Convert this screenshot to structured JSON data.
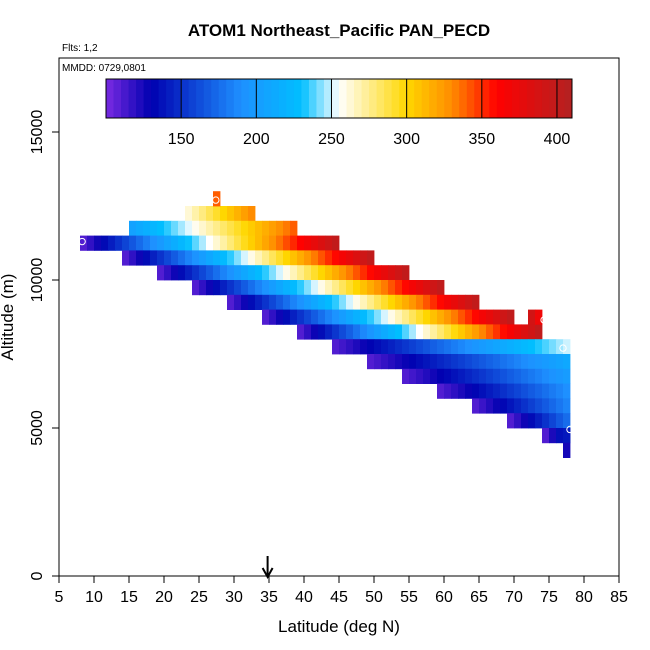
{
  "chart_data": {
    "type": "heatmap",
    "title": "ATOM1 Northeast_Pacific PAN_PECD",
    "flights_note": "Flts: 1,2",
    "date_note": "MMDD: 0729,0801",
    "xlabel": "Latitude (deg N)",
    "ylabel": "Altitude (m)",
    "xlim": [
      5,
      85
    ],
    "ylim": [
      0,
      17500
    ],
    "x_ticks": [
      5,
      10,
      15,
      20,
      25,
      30,
      35,
      40,
      45,
      50,
      55,
      60,
      65,
      70,
      75,
      80,
      85
    ],
    "y_ticks": [
      0,
      5000,
      10000,
      15000
    ],
    "colorbar": {
      "min": 100,
      "max": 410,
      "ticks": [
        150,
        200,
        250,
        300,
        350,
        400
      ],
      "colors": [
        "#7a2be2",
        "#0000b0",
        "#1e90ff",
        "#00bfff",
        "#ffffff",
        "#ffd700",
        "#ff8c00",
        "#ff0000",
        "#b22222"
      ],
      "stops": [
        100,
        130,
        190,
        230,
        255,
        300,
        330,
        360,
        410
      ]
    },
    "arrow_latitude": 34.8,
    "cell_width_deg": 1,
    "cell_height_m": 500,
    "bands": [
      {
        "alt": 12000,
        "lat_start": 22,
        "lat_end": 32,
        "v_start": 255,
        "v_end": 330
      },
      {
        "alt": 11500,
        "lat_start": 15,
        "lat_end": 38,
        "v_start": 205,
        "v_end": 340
      },
      {
        "alt": 11000,
        "lat_start": 8,
        "lat_end": 44,
        "v_start": 110,
        "v_end": 400
      },
      {
        "alt": 10500,
        "lat_start": 14,
        "lat_end": 49,
        "v_start": 110,
        "v_end": 400
      },
      {
        "alt": 10000,
        "lat_start": 19,
        "lat_end": 54,
        "v_start": 110,
        "v_end": 400
      },
      {
        "alt": 9500,
        "lat_start": 24,
        "lat_end": 59,
        "v_start": 110,
        "v_end": 400
      },
      {
        "alt": 9000,
        "lat_start": 29,
        "lat_end": 64,
        "v_start": 110,
        "v_end": 400
      },
      {
        "alt": 8500,
        "lat_start": 34,
        "lat_end": 69,
        "v_start": 110,
        "v_end": 400
      },
      {
        "alt": 8000,
        "lat_start": 39,
        "lat_end": 73,
        "v_start": 110,
        "v_end": 400
      },
      {
        "alt": 7500,
        "lat_start": 44,
        "lat_end": 77,
        "v_start": 110,
        "v_end": 250
      },
      {
        "alt": 7000,
        "lat_start": 49,
        "lat_end": 77,
        "v_start": 110,
        "v_end": 210
      },
      {
        "alt": 6500,
        "lat_start": 54,
        "lat_end": 77,
        "v_start": 110,
        "v_end": 200
      },
      {
        "alt": 6000,
        "lat_start": 59,
        "lat_end": 77,
        "v_start": 110,
        "v_end": 190
      },
      {
        "alt": 5500,
        "lat_start": 64,
        "lat_end": 77,
        "v_start": 110,
        "v_end": 185
      },
      {
        "alt": 5000,
        "lat_start": 69,
        "lat_end": 77,
        "v_start": 110,
        "v_end": 175
      },
      {
        "alt": 4500,
        "lat_start": 74,
        "lat_end": 77,
        "v_start": 110,
        "v_end": 150
      }
    ],
    "extra_cells": [
      {
        "lat": 27,
        "alt": 12500,
        "value": 340
      },
      {
        "lat": 72,
        "alt": 8500,
        "value": 390
      },
      {
        "lat": 73,
        "alt": 8500,
        "value": 370
      },
      {
        "lat": 77,
        "alt": 4500,
        "value": 140
      },
      {
        "lat": 77,
        "alt": 4000,
        "value": 125
      }
    ],
    "markers": [
      {
        "lat": 8.3,
        "alt": 11300
      },
      {
        "lat": 27.4,
        "alt": 12700
      },
      {
        "lat": 74.3,
        "alt": 8650
      },
      {
        "lat": 77.0,
        "alt": 7700
      },
      {
        "lat": 78.0,
        "alt": 4950
      }
    ]
  }
}
